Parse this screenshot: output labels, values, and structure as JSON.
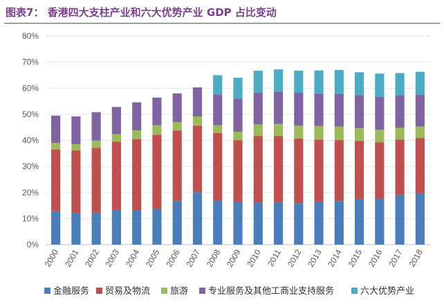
{
  "figure": {
    "title": "图表7：  香港四大支柱产业和六大优势产业 GDP 占比变动"
  },
  "chart_data": {
    "type": "bar",
    "stacked": true,
    "categories": [
      "2000",
      "2001",
      "2002",
      "2003",
      "2004",
      "2005",
      "2006",
      "2007",
      "2008",
      "2009",
      "2010",
      "2011",
      "2012",
      "2013",
      "2014",
      "2015",
      "2016",
      "2017",
      "2018"
    ],
    "series": [
      {
        "name": "金融服务",
        "color": "#4a7ebb",
        "values": [
          12.8,
          12.0,
          12.3,
          13.3,
          13.0,
          13.8,
          16.8,
          20.1,
          17.0,
          16.2,
          16.2,
          16.3,
          15.9,
          16.5,
          16.7,
          17.4,
          17.7,
          18.9,
          19.7
        ]
      },
      {
        "name": "贸易及物流",
        "color": "#c0504d",
        "values": [
          23.7,
          24.2,
          24.8,
          26.2,
          27.5,
          28.4,
          27.0,
          25.5,
          25.8,
          23.8,
          25.5,
          25.3,
          24.8,
          23.8,
          23.4,
          22.4,
          21.6,
          21.4,
          21.2
        ]
      },
      {
        "name": "旅游",
        "color": "#9bbb59",
        "values": [
          2.5,
          2.3,
          2.8,
          2.9,
          3.3,
          3.6,
          3.2,
          3.5,
          3.0,
          3.3,
          4.4,
          4.7,
          4.9,
          5.2,
          5.2,
          4.9,
          4.8,
          4.5,
          4.4
        ]
      },
      {
        "name": "专业服务及其他工商业支持服务",
        "color": "#8064a2",
        "values": [
          10.5,
          10.7,
          10.9,
          10.4,
          10.8,
          10.6,
          11.0,
          11.2,
          11.8,
          12.7,
          12.2,
          12.3,
          12.6,
          12.5,
          12.5,
          12.6,
          12.6,
          12.5,
          12.2
        ]
      },
      {
        "name": "六大优势产业",
        "color": "#4bacc6",
        "values": [
          0,
          0,
          0,
          0,
          0,
          0,
          0,
          0,
          7.4,
          8.0,
          8.4,
          8.6,
          8.5,
          8.8,
          9.2,
          8.8,
          8.9,
          8.5,
          8.8
        ]
      }
    ],
    "ylim": [
      0,
      80
    ],
    "yticks": [
      "0%",
      "10%",
      "20%",
      "30%",
      "40%",
      "50%",
      "60%",
      "70%",
      "80%"
    ],
    "grid": true,
    "legend_position": "bottom"
  }
}
